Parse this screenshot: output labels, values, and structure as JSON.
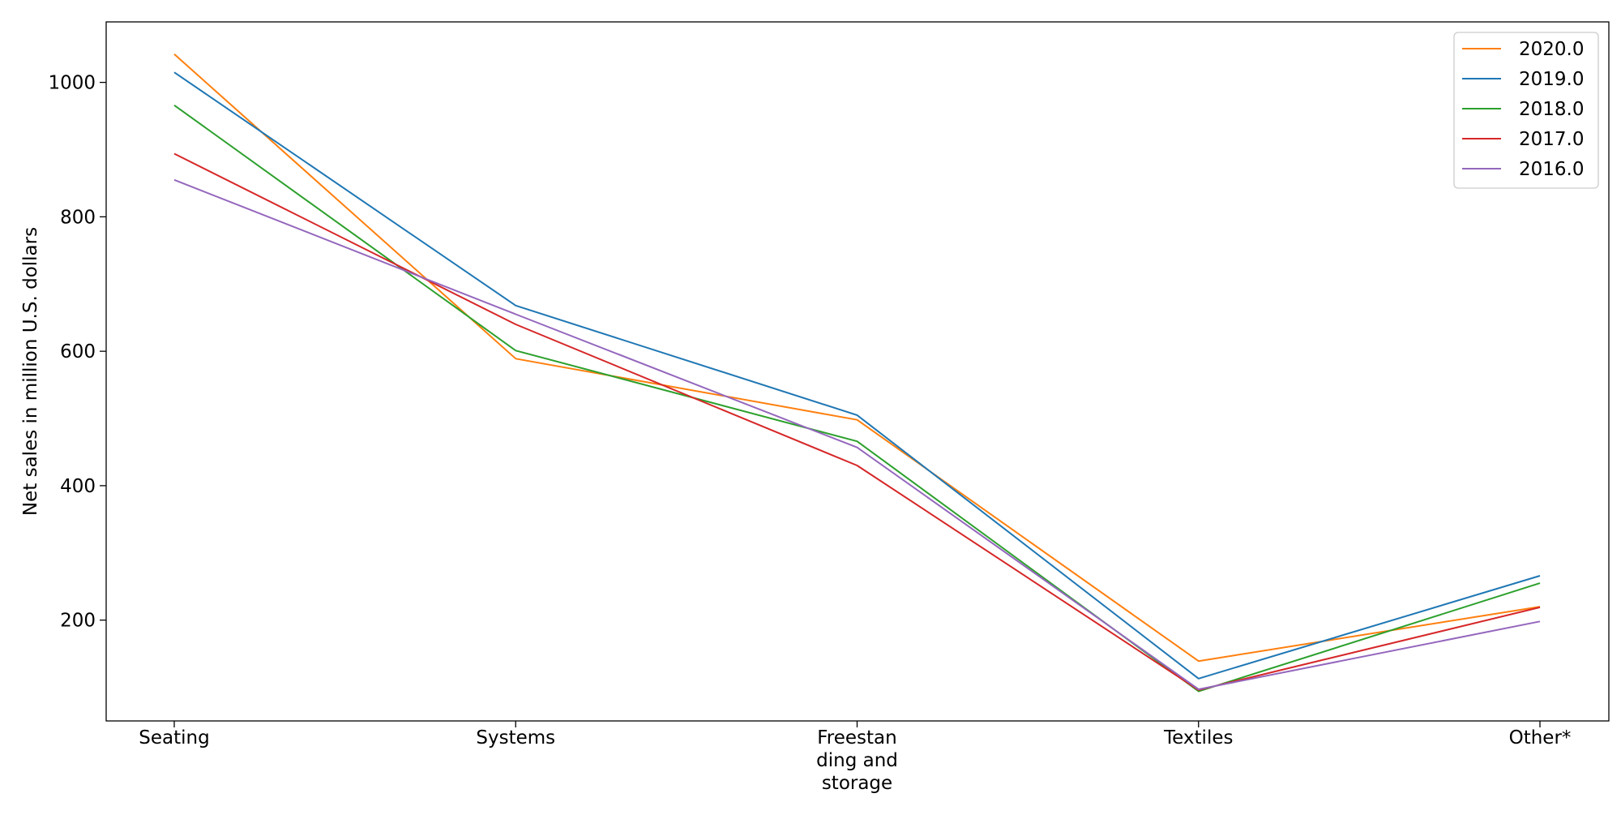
{
  "chart_data": {
    "type": "line",
    "title": "",
    "xlabel": "",
    "ylabel": "Net sales in million U.S. dollars",
    "categories": [
      "Seating",
      "Systems",
      "Freestanding and storage",
      "Textiles",
      "Other*"
    ],
    "category_tick_lines": [
      [
        "Seating"
      ],
      [
        "Systems"
      ],
      [
        "Freestan",
        "ding and",
        "storage"
      ],
      [
        "Textiles"
      ],
      [
        "Other*"
      ]
    ],
    "ylim": [
      50,
      1090
    ],
    "yticks": [
      200,
      400,
      600,
      800,
      1000
    ],
    "grid": false,
    "legend_position": "top-right",
    "series": [
      {
        "name": "2020.0",
        "color": "#ff7f0e",
        "values": [
          1042,
          589,
          498,
          139,
          220
        ]
      },
      {
        "name": "2019.0",
        "color": "#1f77b4",
        "values": [
          1015,
          668,
          505,
          113,
          266
        ]
      },
      {
        "name": "2018.0",
        "color": "#2ca02c",
        "values": [
          966,
          601,
          466,
          94,
          255
        ]
      },
      {
        "name": "2017.0",
        "color": "#d62728",
        "values": [
          894,
          640,
          430,
          96,
          219
        ]
      },
      {
        "name": "2016.0",
        "color": "#9467bd",
        "values": [
          855,
          655,
          457,
          97,
          198
        ]
      }
    ]
  }
}
